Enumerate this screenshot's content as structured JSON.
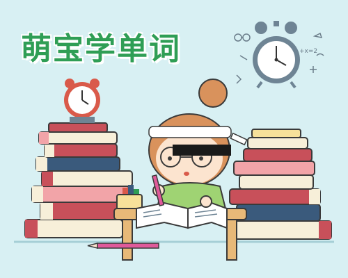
{
  "title": "萌宝学单词",
  "colors": {
    "background": "#d8f0f3",
    "title": "#2f9e55",
    "book_red": "#c8505a",
    "book_pink": "#f2a4a8",
    "book_cream": "#f7efd9",
    "book_navy": "#3a5a7c",
    "clock_red": "#d95a4a",
    "clock_gray": "#6e8494"
  },
  "icons": [
    "alarm-clock-icon",
    "pencil-icon",
    "glasses-icon",
    "cartoon-girl-studying"
  ]
}
